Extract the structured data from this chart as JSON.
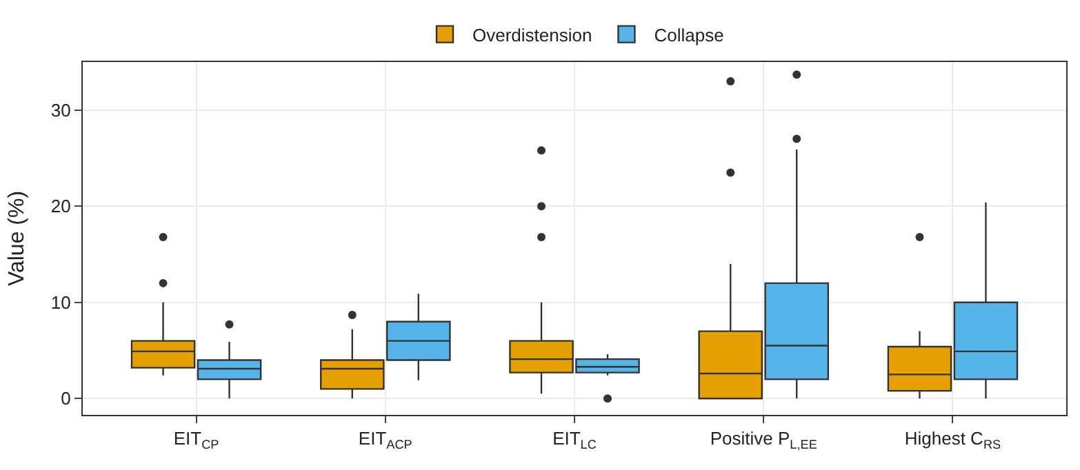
{
  "chart_data": {
    "type": "box",
    "ylabel": "Value (%)",
    "categories": [
      "EIT$_{CP}$",
      "EIT$_{ACP}$",
      "EIT$_{LC}$",
      "Positive P$_{L,EE}$",
      "Highest C$_{RS}$"
    ],
    "series": [
      {
        "name": "Overdistension",
        "color": "#e69f00",
        "boxes": [
          {
            "low": 2.4,
            "q1": 3.2,
            "median": 4.9,
            "q3": 6.0,
            "high": 10,
            "outliers": [
              16.8,
              12
            ]
          },
          {
            "low": 0,
            "q1": 1.0,
            "median": 3.1,
            "q3": 4.0,
            "high": 7.2,
            "outliers": [
              8.7
            ]
          },
          {
            "low": 0.5,
            "q1": 2.7,
            "median": 4.1,
            "q3": 6.0,
            "high": 10,
            "outliers": [
              25.8,
              20,
              16.8
            ]
          },
          {
            "low": 0,
            "q1": 0,
            "median": 2.6,
            "q3": 7.0,
            "high": 14,
            "outliers": [
              33,
              23.5
            ]
          },
          {
            "low": 0,
            "q1": 0.8,
            "median": 2.5,
            "q3": 5.4,
            "high": 7,
            "outliers": [
              16.8
            ]
          }
        ]
      },
      {
        "name": "Collapse",
        "color": "#56b4e9",
        "boxes": [
          {
            "low": 0,
            "q1": 2.0,
            "median": 3.1,
            "q3": 4.0,
            "high": 5.9,
            "outliers": [
              7.7
            ]
          },
          {
            "low": 1.9,
            "q1": 4.0,
            "median": 6.0,
            "q3": 8.0,
            "high": 10.9
          },
          {
            "low": 2.4,
            "q1": 2.7,
            "median": 3.3,
            "q3": 4.1,
            "high": 4.6,
            "outliers": [
              0
            ]
          },
          {
            "low": 0,
            "q1": 2.0,
            "median": 5.5,
            "q3": 12,
            "high": 25.9,
            "outliers": [
              33.7,
              27
            ]
          },
          {
            "low": 0,
            "q1": 2.0,
            "median": 4.9,
            "q3": 10,
            "high": 20.4
          }
        ]
      }
    ],
    "ylim": [
      -1.7,
      35
    ],
    "yticks": [
      0,
      10,
      20,
      30
    ],
    "grid": true,
    "legend": "top"
  }
}
